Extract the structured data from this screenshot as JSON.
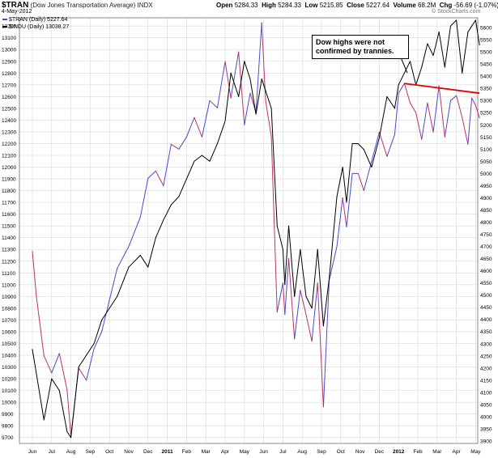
{
  "header": {
    "symbol": "$TRAN",
    "title": "(Dow Jones Transportation Average)",
    "exchange": "INDX",
    "date": "4-May-2012",
    "open_label": "Open",
    "open": "5284.33",
    "high_label": "High",
    "high": "5284.33",
    "low_label": "Low",
    "low": "5215.85",
    "close_label": "Close",
    "close": "5227.64",
    "volume_label": "Volume",
    "volume": "68.2M",
    "chg_label": "Chg",
    "chg": "-56.69 (-1.07%)",
    "brand": "© StockCharts.com"
  },
  "legend": {
    "tran": "$TRAN (Daily) 5227.64",
    "indu": "$INDU (Daily) 13038.27"
  },
  "annotation": {
    "text": "Dow highs were not confirmed by trannies."
  },
  "colors": {
    "tran_up": "#4a4ad0",
    "tran_down": "#c0306a",
    "indu": "#000000",
    "trendline": "#e00000",
    "grid": "#d8d8d8"
  },
  "chart_data": {
    "type": "line",
    "x_tick_labels": [
      "Jun",
      "Jul",
      "Aug",
      "Sep",
      "Oct",
      "Nov",
      "Dec",
      "2011",
      "Feb",
      "Mar",
      "Apr",
      "May",
      "Jun",
      "Jul",
      "Aug",
      "Sep",
      "Oct",
      "Nov",
      "Dec",
      "2012",
      "Feb",
      "Mar",
      "Apr",
      "May"
    ],
    "left_axis": {
      "series": "$INDU",
      "ylim": [
        9650,
        13270
      ],
      "ticks": [
        9700,
        9800,
        9900,
        10000,
        10100,
        10200,
        10300,
        10400,
        10500,
        10600,
        10700,
        10800,
        10900,
        11000,
        11100,
        11200,
        11300,
        11400,
        11500,
        11600,
        11700,
        11800,
        11900,
        12000,
        12100,
        12200,
        12300,
        12400,
        12500,
        12600,
        12700,
        12800,
        12900,
        13000,
        13100,
        13200
      ]
    },
    "right_axis": {
      "series": "$TRAN",
      "ylim": [
        3890,
        5640
      ],
      "ticks": [
        3900,
        3950,
        4000,
        4050,
        4100,
        4150,
        4200,
        4250,
        4300,
        4350,
        4400,
        4450,
        4500,
        4550,
        4600,
        4650,
        4700,
        4750,
        4800,
        4850,
        4900,
        4950,
        5000,
        5050,
        5100,
        5150,
        5200,
        5250,
        5300,
        5350,
        5400,
        5450,
        5500,
        5550,
        5600
      ]
    },
    "series": [
      {
        "name": "$TRAN",
        "axis": "right",
        "x": [
          0,
          0.2,
          0.6,
          1.0,
          1.4,
          1.8,
          2.0,
          2.4,
          2.8,
          3.2,
          3.6,
          4.0,
          4.4,
          5.0,
          5.6,
          6.0,
          6.4,
          6.8,
          7.2,
          7.6,
          8.0,
          8.4,
          8.8,
          9.2,
          9.6,
          10.0,
          10.3,
          10.7,
          11.0,
          11.3,
          11.6,
          11.9,
          12.1,
          12.4,
          12.7,
          13.0,
          13.1,
          13.3,
          13.6,
          13.9,
          14.2,
          14.5,
          14.8,
          15.1,
          15.4,
          15.8,
          16.1,
          16.3,
          16.6,
          16.9,
          17.2,
          17.6,
          18.0,
          18.4,
          18.8,
          19.0,
          19.3,
          19.6,
          19.9,
          20.2,
          20.5,
          20.8,
          21.1,
          21.4,
          21.7,
          22.0,
          22.3,
          22.6,
          22.8,
          23.0,
          23.2
        ],
        "values": [
          4680,
          4500,
          4250,
          4180,
          4260,
          4110,
          3920,
          4200,
          4150,
          4280,
          4350,
          4480,
          4610,
          4700,
          4820,
          4980,
          5010,
          4950,
          5120,
          5100,
          5150,
          5230,
          5150,
          5300,
          5270,
          5460,
          5310,
          5500,
          5200,
          5330,
          5250,
          5620,
          5300,
          5150,
          4430,
          4550,
          4420,
          4650,
          4320,
          4520,
          4420,
          4310,
          4550,
          4040,
          4560,
          4700,
          4900,
          4780,
          5000,
          5000,
          4930,
          5050,
          5170,
          5070,
          5160,
          5330,
          5370,
          5290,
          5250,
          5140,
          5290,
          5170,
          5360,
          5150,
          5300,
          5320,
          5230,
          5120,
          5310,
          5280,
          5227.64
        ]
      },
      {
        "name": "$INDU",
        "axis": "left",
        "x": [
          0,
          0.3,
          0.6,
          1.0,
          1.4,
          1.8,
          2.0,
          2.4,
          2.8,
          3.2,
          3.6,
          4.0,
          4.4,
          5.0,
          5.6,
          6.0,
          6.4,
          6.8,
          7.2,
          7.6,
          8.0,
          8.4,
          8.8,
          9.2,
          9.6,
          10.0,
          10.3,
          10.7,
          11.0,
          11.3,
          11.6,
          11.9,
          12.1,
          12.4,
          12.7,
          13.0,
          13.1,
          13.3,
          13.6,
          13.9,
          14.2,
          14.5,
          14.8,
          15.1,
          15.4,
          15.8,
          16.1,
          16.3,
          16.6,
          16.9,
          17.2,
          17.6,
          18.0,
          18.4,
          18.8,
          19.0,
          19.3,
          19.6,
          19.9,
          20.2,
          20.5,
          20.8,
          21.1,
          21.4,
          21.7,
          22.0,
          22.3,
          22.6,
          22.8,
          23.0,
          23.2
        ],
        "values": [
          10450,
          10150,
          9850,
          10200,
          10100,
          9750,
          9700,
          10300,
          10400,
          10500,
          10700,
          10800,
          10900,
          11150,
          11250,
          11150,
          11400,
          11550,
          11680,
          11750,
          11900,
          12050,
          12100,
          12050,
          12200,
          12390,
          12800,
          12600,
          12900,
          12750,
          12450,
          12750,
          12650,
          12500,
          11500,
          11300,
          11000,
          11500,
          10900,
          11300,
          10900,
          10800,
          11300,
          10650,
          11050,
          11750,
          12000,
          11700,
          12200,
          12200,
          12150,
          12000,
          12250,
          12600,
          12500,
          12700,
          12800,
          12900,
          12700,
          12850,
          13050,
          12950,
          13150,
          12850,
          13200,
          13250,
          12800,
          13150,
          13200,
          13250,
          13038.27
        ]
      }
    ],
    "annotations": [
      {
        "type": "trendline",
        "color": "red",
        "from": {
          "x": 19.3,
          "y": 5370
        },
        "to": {
          "x": 23.2,
          "y": 5330
        }
      }
    ]
  }
}
